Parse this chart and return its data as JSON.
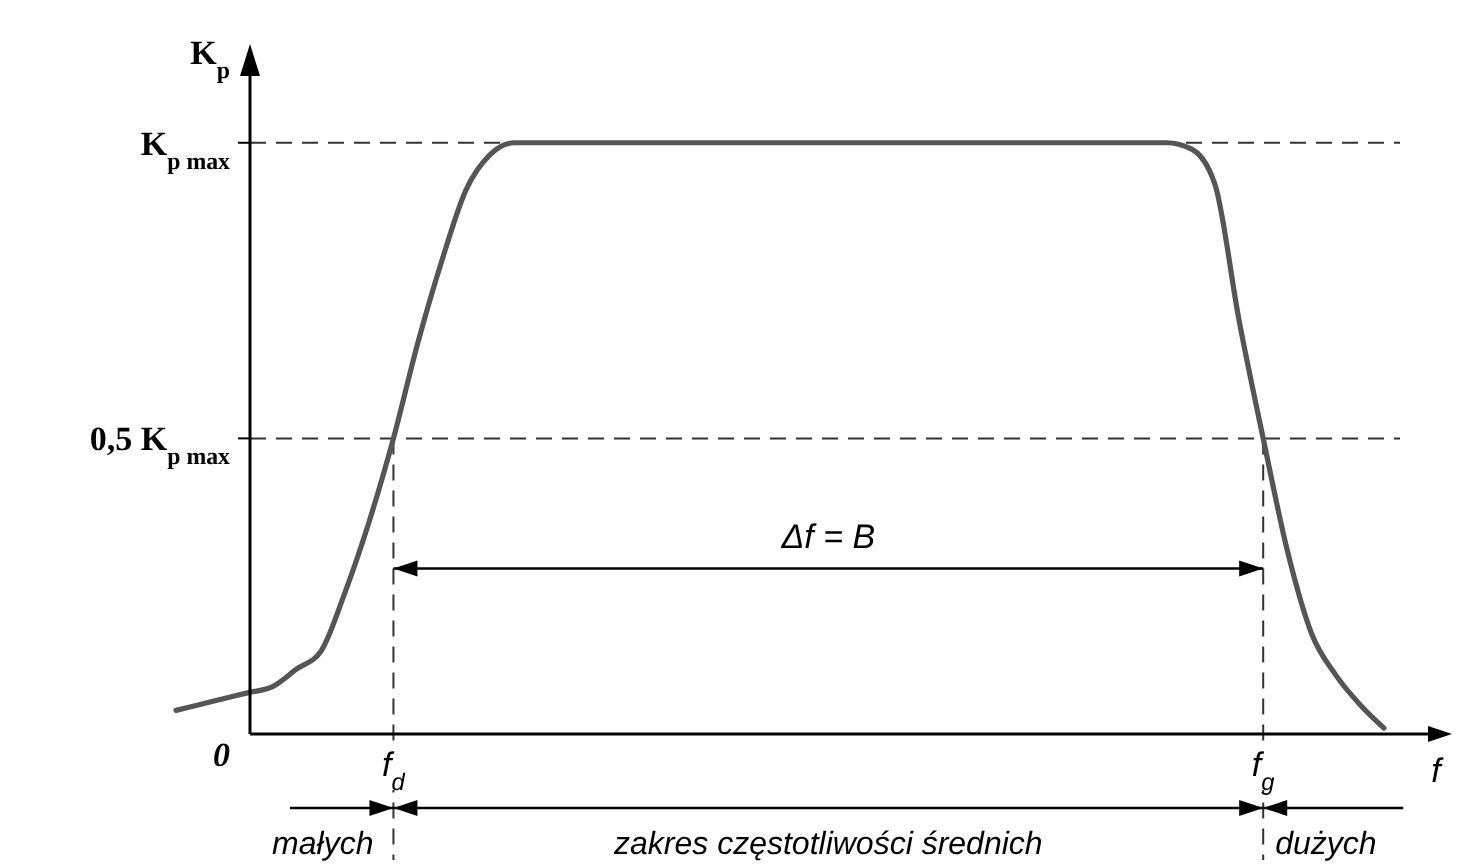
{
  "chart_data": {
    "type": "line",
    "ylabel": "K$_{p}$",
    "xlabel": "f",
    "categories": [
      null,
      null,
      null,
      null,
      null,
      null,
      null,
      null,
      null,
      "f$_{d}$",
      null,
      null,
      null,
      null,
      null,
      null,
      null,
      null,
      null,
      null,
      null,
      null,
      null,
      null,
      null,
      null,
      null,
      null,
      null,
      null,
      null,
      null,
      null,
      null,
      null,
      null,
      null,
      null,
      null,
      null,
      null,
      null,
      null,
      null,
      null,
      "f$_{g}$",
      null,
      null,
      null,
      null,
      null
    ],
    "series": [
      {
        "color": "#555555",
        "values": [
          0.04,
          0.05,
          0.06,
          0.07,
          0.08,
          0.11,
          0.14,
          0.24,
          0.36,
          0.5,
          0.66,
          0.8,
          0.92,
          0.98,
          1.0,
          1.0,
          1.0,
          1.0,
          1.0,
          1.0,
          1.0,
          1.0,
          1.0,
          1.0,
          1.0,
          1.0,
          1.0,
          1.0,
          1.0,
          1.0,
          1.0,
          1.0,
          1.0,
          1.0,
          1.0,
          1.0,
          1.0,
          1.0,
          1.0,
          1.0,
          1.0,
          1.0,
          0.99,
          0.93,
          0.7,
          0.5,
          0.31,
          0.17,
          0.1,
          0.05,
          0.01
        ]
      }
    ],
    "ylim": [
      0,
      1.14
    ],
    "yticks": [
      {
        "value": 0,
        "label": "0"
      },
      {
        "value": 0.5,
        "label": "0,5 K$_{p max}$"
      },
      {
        "value": 1,
        "label": "K$_{p max}$"
      }
    ],
    "ref_lines": [
      {
        "axis": "y",
        "value": 1,
        "line_style": "dashed"
      },
      {
        "axis": "y",
        "value": 0.5,
        "line_style": "dashed"
      },
      {
        "axis": "x",
        "value": "f$_{d}$",
        "line_style": "dashed"
      },
      {
        "axis": "x",
        "value": "f$_{g}$",
        "line_style": "dashed"
      }
    ],
    "annotations": [
      "Δf = B",
      {
        "text": "małych",
        "x": "f$_{d}$"
      },
      "zakres częstotliwości średnich",
      {
        "text": "dużych",
        "x": "f$_{g}$"
      }
    ],
    "grid": false,
    "line_style": "solid"
  }
}
